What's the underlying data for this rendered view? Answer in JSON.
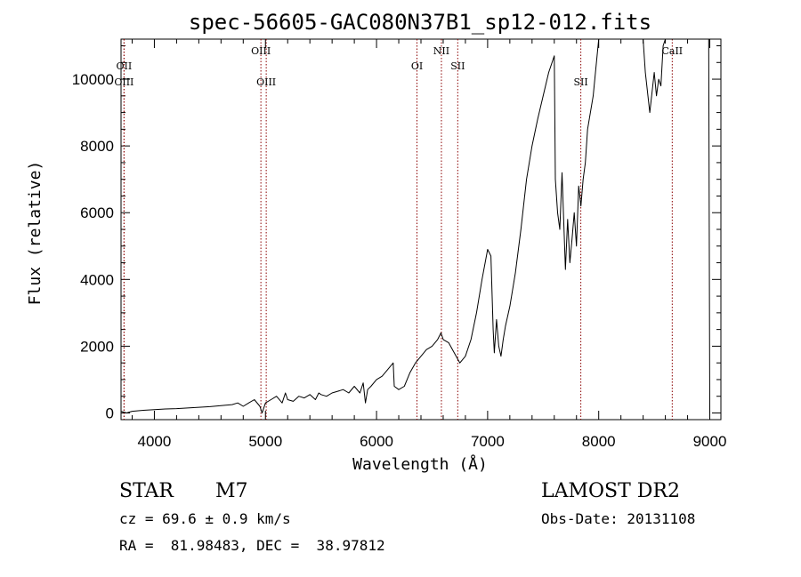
{
  "chart_data": {
    "type": "line",
    "title": "spec-56605-GAC080N37B1_sp12-012.fits",
    "xlabel": "Wavelength (Å)",
    "ylabel": "Flux (relative)",
    "xlim": [
      3700,
      9100
    ],
    "ylim": [
      -200,
      11200
    ],
    "x_ticks": [
      4000,
      5000,
      6000,
      7000,
      8000,
      9000
    ],
    "y_ticks": [
      0,
      2000,
      4000,
      6000,
      8000,
      10000
    ],
    "line_color": "#000000",
    "marker_color": "#8b0000",
    "lines": [
      {
        "label": "OII",
        "wavelength": 3727,
        "row": 1
      },
      {
        "label": "OIII",
        "wavelength": 3727,
        "row": 2
      },
      {
        "label": "OIII",
        "wavelength": 4959,
        "row": 0
      },
      {
        "label": "OIII",
        "wavelength": 5007,
        "row": 2
      },
      {
        "label": "OI",
        "wavelength": 6364,
        "row": 1
      },
      {
        "label": "NII",
        "wavelength": 6584,
        "row": 0
      },
      {
        "label": "SII",
        "wavelength": 6731,
        "row": 1
      },
      {
        "label": "SII",
        "wavelength": 7839,
        "row": 2
      },
      {
        "label": "CaII",
        "wavelength": 8662,
        "row": 0
      }
    ],
    "series": [
      {
        "x": [
          3700,
          3750,
          3800,
          3900,
          4000,
          4100,
          4200,
          4300,
          4400,
          4500,
          4600,
          4700,
          4750,
          4800,
          4850,
          4900,
          4950,
          4970,
          5000,
          5050,
          5100,
          5150,
          5180,
          5200,
          5250,
          5300,
          5350,
          5400,
          5450,
          5480,
          5500,
          5550,
          5600,
          5650,
          5700,
          5750,
          5800,
          5850,
          5880,
          5900,
          5920,
          5950,
          6000,
          6050,
          6100,
          6150,
          6160,
          6200,
          6250,
          6300,
          6350,
          6400,
          6450,
          6500,
          6550,
          6580,
          6600,
          6650,
          6700,
          6750,
          6800,
          6850,
          6900,
          6950,
          7000,
          7030,
          7050,
          7060,
          7080,
          7100,
          7120,
          7140,
          7160,
          7200,
          7250,
          7300,
          7350,
          7400,
          7450,
          7500,
          7550,
          7600,
          7610,
          7630,
          7650,
          7670,
          7700,
          7720,
          7740,
          7760,
          7780,
          7800,
          7820,
          7840,
          7860,
          7880,
          7900,
          7950,
          8000,
          8050,
          8100,
          8200,
          8300,
          8400,
          8420,
          8440,
          8460,
          8480,
          8500,
          8520,
          8540,
          8560,
          8580,
          8600,
          8650,
          8700,
          8800,
          8900,
          8950,
          8990,
          9000
        ],
        "y": [
          50,
          0,
          50,
          80,
          100,
          120,
          130,
          150,
          170,
          190,
          220,
          250,
          300,
          200,
          300,
          400,
          200,
          0,
          300,
          400,
          500,
          300,
          600,
          400,
          350,
          500,
          450,
          550,
          400,
          600,
          550,
          500,
          600,
          650,
          700,
          600,
          800,
          600,
          900,
          300,
          700,
          800,
          1000,
          1100,
          1300,
          1500,
          800,
          700,
          800,
          1200,
          1500,
          1700,
          1900,
          2000,
          2200,
          2400,
          2200,
          2100,
          1800,
          1500,
          1700,
          2200,
          3000,
          4000,
          4900,
          4700,
          2500,
          1800,
          2800,
          2000,
          1700,
          2200,
          2600,
          3200,
          4200,
          5500,
          7000,
          8000,
          8800,
          9500,
          10200,
          10700,
          7000,
          6000,
          5500,
          7200,
          4300,
          5800,
          4500,
          5200,
          6000,
          5000,
          6800,
          6200,
          7000,
          7500,
          8500,
          9500,
          11200,
          11200,
          11200,
          11200,
          11200,
          11200,
          10200,
          9600,
          9000,
          9600,
          10200,
          9500,
          10000,
          9800,
          11000,
          11200,
          11200,
          11200,
          11200,
          11200,
          11200,
          11200,
          0
        ]
      }
    ]
  },
  "info": {
    "object_type": "STAR",
    "subclass": "M7",
    "survey": "LAMOST DR2",
    "redshift": "cz = 69.6 ± 0.9 km/s",
    "obs_date": "Obs-Date: 20131108",
    "coords": "RA =  81.98483, DEC =  38.97812"
  }
}
